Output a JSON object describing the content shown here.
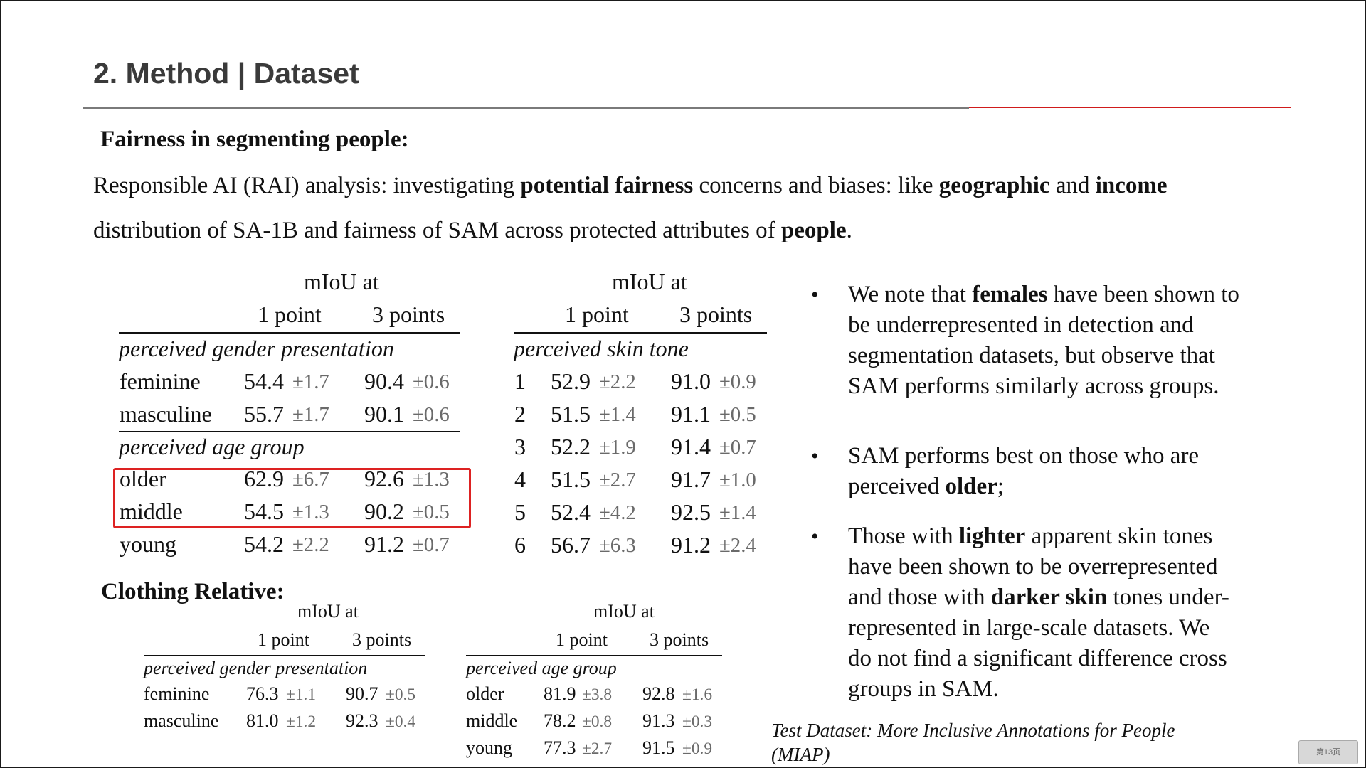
{
  "slide": {
    "title": "2. Method | Dataset",
    "section_heading": "Fairness in segmenting people:",
    "intro_line1": [
      {
        "t": "Responsible AI (RAI) analysis: investigating ",
        "b": false
      },
      {
        "t": "potential fairness",
        "b": true
      },
      {
        "t": " concerns and biases: like ",
        "b": false
      },
      {
        "t": "geographic",
        "b": true
      },
      {
        "t": " and ",
        "b": false
      },
      {
        "t": "income",
        "b": true
      }
    ],
    "intro_line2": [
      {
        "t": "distribution of SA-1B and fairness of SAM across protected attributes of ",
        "b": false
      },
      {
        "t": "people",
        "b": true
      },
      {
        "t": ".",
        "b": false
      }
    ],
    "clothing_heading": "Clothing Relative:",
    "footnote_line1": "Test Dataset: More Inclusive Annotations for People",
    "footnote_line2": "(MIAP)",
    "page_badge": "第13页"
  },
  "table_gender_age": {
    "header_group": "mIoU at",
    "col1": "1 point",
    "col2": "3 points",
    "section1": "perceived gender presentation",
    "rows1": [
      {
        "label": "feminine",
        "v1": "54.4",
        "e1": "±1.7",
        "v2": "90.4",
        "e2": "±0.6"
      },
      {
        "label": "masculine",
        "v1": "55.7",
        "e1": "±1.7",
        "v2": "90.1",
        "e2": "±0.6"
      }
    ],
    "section2": "perceived age group",
    "rows2": [
      {
        "label": "older",
        "v1": "62.9",
        "e1": "±6.7",
        "v2": "92.6",
        "e2": "±1.3"
      },
      {
        "label": "middle",
        "v1": "54.5",
        "e1": "±1.3",
        "v2": "90.2",
        "e2": "±0.5"
      },
      {
        "label": "young",
        "v1": "54.2",
        "e1": "±2.2",
        "v2": "91.2",
        "e2": "±0.7"
      }
    ]
  },
  "table_skin": {
    "header_group": "mIoU at",
    "col1": "1 point",
    "col2": "3 points",
    "section": "perceived skin tone",
    "rows": [
      {
        "label": "1",
        "v1": "52.9",
        "e1": "±2.2",
        "v2": "91.0",
        "e2": "±0.9"
      },
      {
        "label": "2",
        "v1": "51.5",
        "e1": "±1.4",
        "v2": "91.1",
        "e2": "±0.5"
      },
      {
        "label": "3",
        "v1": "52.2",
        "e1": "±1.9",
        "v2": "91.4",
        "e2": "±0.7"
      },
      {
        "label": "4",
        "v1": "51.5",
        "e1": "±2.7",
        "v2": "91.7",
        "e2": "±1.0"
      },
      {
        "label": "5",
        "v1": "52.4",
        "e1": "±4.2",
        "v2": "92.5",
        "e2": "±1.4"
      },
      {
        "label": "6",
        "v1": "56.7",
        "e1": "±6.3",
        "v2": "91.2",
        "e2": "±2.4"
      }
    ]
  },
  "table_cloth_gender": {
    "header_group": "mIoU at",
    "col1": "1 point",
    "col2": "3 points",
    "section": "perceived gender presentation",
    "rows": [
      {
        "label": "feminine",
        "v1": "76.3",
        "e1": "±1.1",
        "v2": "90.7",
        "e2": "±0.5"
      },
      {
        "label": "masculine",
        "v1": "81.0",
        "e1": "±1.2",
        "v2": "92.3",
        "e2": "±0.4"
      }
    ]
  },
  "table_cloth_age": {
    "header_group": "mIoU at",
    "col1": "1 point",
    "col2": "3 points",
    "section": "perceived age group",
    "rows": [
      {
        "label": "older",
        "v1": "81.9",
        "e1": "±3.8",
        "v2": "92.8",
        "e2": "±1.6"
      },
      {
        "label": "middle",
        "v1": "78.2",
        "e1": "±0.8",
        "v2": "91.3",
        "e2": "±0.3"
      },
      {
        "label": "young",
        "v1": "77.3",
        "e1": "±2.7",
        "v2": "91.5",
        "e2": "±0.9"
      }
    ]
  },
  "bullets": [
    {
      "lines": [
        [
          {
            "t": " We note that ",
            "b": false
          },
          {
            "t": "females",
            "b": true
          },
          {
            "t": " have been shown to",
            "b": false
          }
        ],
        [
          {
            "t": "be underrepresented in detection and",
            "b": false
          }
        ],
        [
          {
            "t": "segmentation datasets, but observe that",
            "b": false
          }
        ],
        [
          {
            "t": "SAM performs similarly across groups.",
            "b": false
          }
        ]
      ]
    },
    {
      "lines": [
        [
          {
            "t": "SAM performs best on those who are",
            "b": false
          }
        ],
        [
          {
            "t": "perceived ",
            "b": false
          },
          {
            "t": "older",
            "b": true
          },
          {
            "t": ";",
            "b": false
          }
        ]
      ]
    },
    {
      "lines": [
        [
          {
            "t": "Those with ",
            "b": false
          },
          {
            "t": "lighter",
            "b": true
          },
          {
            "t": " apparent skin tones",
            "b": false
          }
        ],
        [
          {
            "t": "have been shown to be overrepresented",
            "b": false
          }
        ],
        [
          {
            "t": "and those with ",
            "b": false
          },
          {
            "t": "darker skin",
            "b": true
          },
          {
            "t": " tones under-",
            "b": false
          }
        ],
        [
          {
            "t": "represented in large-scale datasets.  We",
            "b": false
          }
        ],
        [
          {
            "t": "do not find a significant difference cross",
            "b": false
          }
        ],
        [
          {
            "t": "groups in SAM.",
            "b": false
          }
        ]
      ]
    }
  ],
  "colors": {
    "accent_red": "#d01b1b",
    "title_gray": "#3a3a3a",
    "highlight_box": "#dd2222"
  }
}
